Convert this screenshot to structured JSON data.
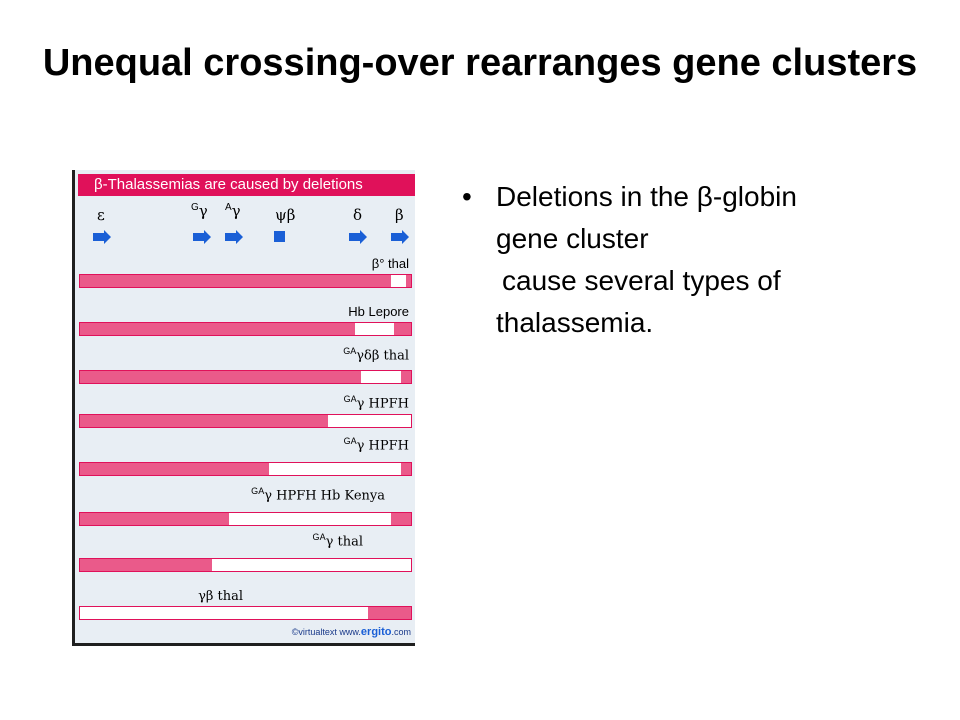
{
  "slide": {
    "title": "Unequal crossing-over rearranges gene clusters"
  },
  "figure": {
    "header": "β-Thalassemias are caused by deletions",
    "genes": [
      {
        "name": "ε"
      },
      {
        "sup": "G",
        "name": "γ"
      },
      {
        "sup": "A",
        "name": "γ"
      },
      {
        "name": "ψβ"
      },
      {
        "name": "δ"
      },
      {
        "name": "β"
      }
    ],
    "rows": [
      {
        "label": "β° thal",
        "deleted_from": 0.94,
        "deleted_to": 0.985
      },
      {
        "label": "Hb Lepore",
        "deleted_from": 0.83,
        "deleted_to": 0.95
      },
      {
        "label_parts": [
          "G",
          "A",
          "γδβ thal"
        ],
        "deleted_from": 0.85,
        "deleted_to": 0.97
      },
      {
        "label_parts": [
          "G",
          "A",
          "γ HPFH"
        ],
        "deleted_from": 0.75,
        "deleted_to": 1.0
      },
      {
        "label_parts": [
          "G",
          "A",
          "γ HPFH"
        ],
        "deleted_from": 0.57,
        "deleted_to": 0.97
      },
      {
        "label_parts": [
          "G",
          "A",
          "γ HPFH Hb Kenya"
        ],
        "deleted_from": 0.45,
        "deleted_to": 0.94
      },
      {
        "label_parts": [
          "G",
          "A",
          "γ thal"
        ],
        "deleted_from": 0.4,
        "deleted_to": 1.0
      },
      {
        "label": "γβ thal",
        "deleted_from": 0.0,
        "deleted_to": 0.87
      }
    ],
    "copyright_prefix": "©virtualtext www.",
    "copyright_brand": "ergito",
    "copyright_suffix": ".com",
    "colors": {
      "header": "#e0115a",
      "bar_fill": "#ea5a8a",
      "arrow": "#1a5fd6"
    }
  },
  "bullets": {
    "dot": "•",
    "line1": "Deletions in the β-globin",
    "line2": "gene cluster",
    "line3": "cause several types of",
    "line4": "thalassemia."
  }
}
